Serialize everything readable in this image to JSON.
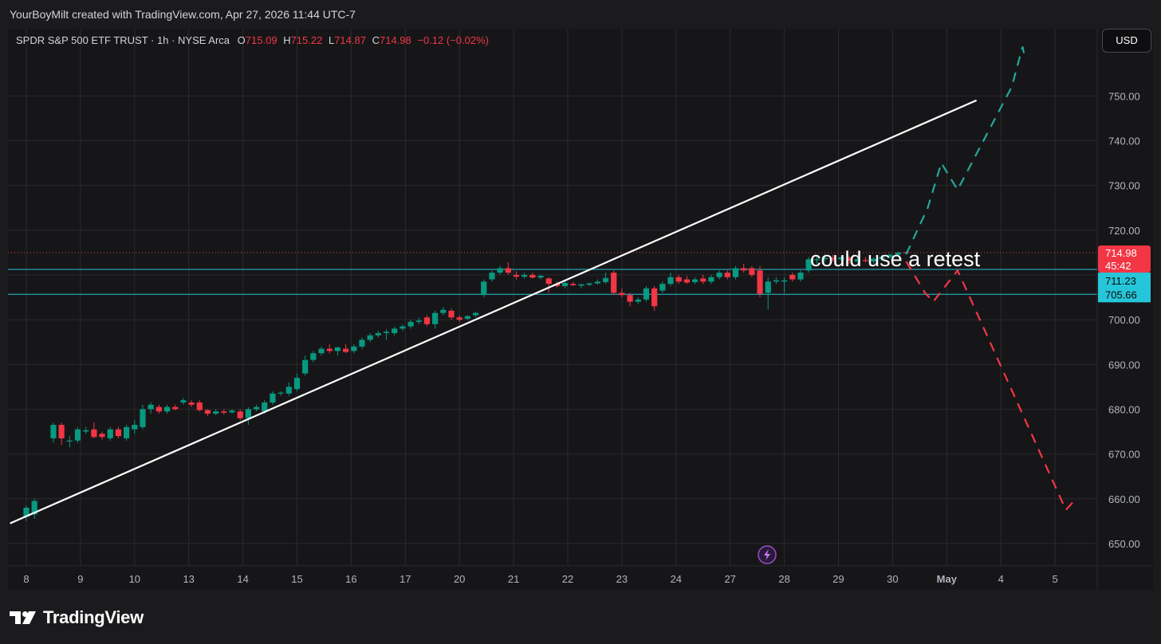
{
  "header": {
    "attribution": "YourBoyMilt created with TradingView.com, Apr 27, 2026 11:44 UTC-7"
  },
  "legend": {
    "symbol": "SPDR S&P 500 ETF TRUST · 1h · NYSE Arca",
    "o_label": "O",
    "o_value": "715.09",
    "h_label": "H",
    "h_value": "715.22",
    "l_label": "L",
    "l_value": "714.87",
    "c_label": "C",
    "c_value": "714.98",
    "change": "−0.12 (−0.02%)"
  },
  "currency_button": "USD",
  "annotation": "could use a retest",
  "price_tags": {
    "last_price": "714.98",
    "countdown": "45:42",
    "level_upper": "711.23",
    "level_lower": "705.66"
  },
  "footer": {
    "brand": "TradingView"
  },
  "colors": {
    "up": "#089981",
    "down": "#f23645",
    "level_line": "#26c6da",
    "trendline": "#ffffff",
    "bull_path": "#26a69a",
    "bear_path": "#f23645"
  },
  "chart_data": {
    "type": "candlestick",
    "title": "SPDR S&P 500 ETF TRUST · 1h · NYSE Arca",
    "x_ticks": [
      "8",
      "9",
      "10",
      "13",
      "14",
      "15",
      "16",
      "17",
      "20",
      "21",
      "22",
      "23",
      "24",
      "27",
      "28",
      "29",
      "30",
      "May",
      "4",
      "5"
    ],
    "y_ticks": [
      650,
      660,
      670,
      680,
      690,
      700,
      710,
      720,
      730,
      740,
      750
    ],
    "ylim": [
      645,
      765
    ],
    "last_price": 714.98,
    "horizontal_levels": [
      711.23,
      705.66
    ],
    "candles": [
      {
        "x": 0.0,
        "o": 656,
        "h": 658.5,
        "l": 655,
        "c": 658
      },
      {
        "x": 0.15,
        "o": 656.5,
        "h": 660,
        "l": 655.5,
        "c": 659.5
      },
      {
        "x": 0.5,
        "o": 673.5,
        "h": 677,
        "l": 672.5,
        "c": 676.5
      },
      {
        "x": 0.65,
        "o": 676.5,
        "h": 677,
        "l": 672,
        "c": 673.5
      },
      {
        "x": 0.8,
        "o": 673,
        "h": 674,
        "l": 671.5,
        "c": 673
      },
      {
        "x": 0.95,
        "o": 673,
        "h": 676,
        "l": 672.5,
        "c": 675.5
      },
      {
        "x": 1.1,
        "o": 675,
        "h": 676,
        "l": 674.5,
        "c": 675.3
      },
      {
        "x": 1.25,
        "o": 675.5,
        "h": 677,
        "l": 673.5,
        "c": 673.8
      },
      {
        "x": 1.4,
        "o": 674.5,
        "h": 675,
        "l": 673.2,
        "c": 673.8
      },
      {
        "x": 1.55,
        "o": 673.5,
        "h": 676,
        "l": 673,
        "c": 675.5
      },
      {
        "x": 1.7,
        "o": 675.5,
        "h": 676,
        "l": 673.5,
        "c": 674
      },
      {
        "x": 1.85,
        "o": 673.5,
        "h": 676.5,
        "l": 673,
        "c": 676
      },
      {
        "x": 2.0,
        "o": 675.5,
        "h": 677.5,
        "l": 674.5,
        "c": 676.5
      },
      {
        "x": 2.15,
        "o": 676,
        "h": 681,
        "l": 675.5,
        "c": 680
      },
      {
        "x": 2.3,
        "o": 680,
        "h": 681.5,
        "l": 679,
        "c": 681
      },
      {
        "x": 2.45,
        "o": 680.5,
        "h": 681,
        "l": 679,
        "c": 679.5
      },
      {
        "x": 2.6,
        "o": 679.5,
        "h": 681,
        "l": 679,
        "c": 680.5
      },
      {
        "x": 2.75,
        "o": 680.5,
        "h": 681,
        "l": 679.8,
        "c": 680
      },
      {
        "x": 2.9,
        "o": 681.5,
        "h": 682.5,
        "l": 681,
        "c": 682
      },
      {
        "x": 3.05,
        "o": 681.5,
        "h": 682,
        "l": 680.5,
        "c": 681
      },
      {
        "x": 3.2,
        "o": 681.5,
        "h": 682,
        "l": 679.5,
        "c": 679.8
      },
      {
        "x": 3.35,
        "o": 679.8,
        "h": 680,
        "l": 678.5,
        "c": 679
      },
      {
        "x": 3.5,
        "o": 679,
        "h": 680,
        "l": 678.7,
        "c": 679.5
      },
      {
        "x": 3.65,
        "o": 679.5,
        "h": 680,
        "l": 678.8,
        "c": 679.2
      },
      {
        "x": 3.8,
        "o": 679.3,
        "h": 680,
        "l": 679,
        "c": 679.7
      },
      {
        "x": 3.95,
        "o": 679.5,
        "h": 680,
        "l": 677.5,
        "c": 678
      },
      {
        "x": 4.1,
        "o": 678,
        "h": 680.5,
        "l": 676.5,
        "c": 680
      },
      {
        "x": 4.25,
        "o": 680,
        "h": 681,
        "l": 679.5,
        "c": 680.5
      },
      {
        "x": 4.4,
        "o": 679.5,
        "h": 682,
        "l": 679,
        "c": 681.5
      },
      {
        "x": 4.55,
        "o": 681.5,
        "h": 684,
        "l": 681,
        "c": 683.5
      },
      {
        "x": 4.7,
        "o": 683.5,
        "h": 684,
        "l": 683,
        "c": 683.7
      },
      {
        "x": 4.85,
        "o": 683.5,
        "h": 686,
        "l": 683,
        "c": 685
      },
      {
        "x": 5.0,
        "o": 684.5,
        "h": 688,
        "l": 684,
        "c": 687
      },
      {
        "x": 5.15,
        "o": 688,
        "h": 692,
        "l": 687.5,
        "c": 691
      },
      {
        "x": 5.3,
        "o": 691,
        "h": 693,
        "l": 690.5,
        "c": 692.5
      },
      {
        "x": 5.45,
        "o": 692.5,
        "h": 694,
        "l": 692,
        "c": 693.5
      },
      {
        "x": 5.6,
        "o": 693.5,
        "h": 694.5,
        "l": 692.5,
        "c": 693
      },
      {
        "x": 5.75,
        "o": 693,
        "h": 694,
        "l": 692,
        "c": 693.8
      },
      {
        "x": 5.9,
        "o": 693.5,
        "h": 694.5,
        "l": 692.5,
        "c": 692.8
      },
      {
        "x": 6.05,
        "o": 693,
        "h": 694.5,
        "l": 692.5,
        "c": 694
      },
      {
        "x": 6.2,
        "o": 694,
        "h": 696,
        "l": 693.5,
        "c": 695.5
      },
      {
        "x": 6.35,
        "o": 695.5,
        "h": 697,
        "l": 695,
        "c": 696.5
      },
      {
        "x": 6.5,
        "o": 696.5,
        "h": 697.5,
        "l": 696,
        "c": 697
      },
      {
        "x": 6.65,
        "o": 697,
        "h": 697.8,
        "l": 695.5,
        "c": 697.3
      },
      {
        "x": 6.8,
        "o": 697,
        "h": 698.5,
        "l": 696.5,
        "c": 698
      },
      {
        "x": 6.95,
        "o": 698,
        "h": 699,
        "l": 697.5,
        "c": 698.5
      },
      {
        "x": 7.1,
        "o": 698.5,
        "h": 700,
        "l": 698,
        "c": 699.5
      },
      {
        "x": 7.25,
        "o": 699.5,
        "h": 700.5,
        "l": 699,
        "c": 699.8
      },
      {
        "x": 7.4,
        "o": 700.5,
        "h": 701,
        "l": 698.5,
        "c": 699
      },
      {
        "x": 7.55,
        "o": 699,
        "h": 702,
        "l": 698,
        "c": 701.5
      },
      {
        "x": 7.7,
        "o": 701.5,
        "h": 702.8,
        "l": 701,
        "c": 702.2
      },
      {
        "x": 7.85,
        "o": 702,
        "h": 702.5,
        "l": 700,
        "c": 700.5
      },
      {
        "x": 8.0,
        "o": 700.5,
        "h": 701,
        "l": 699.5,
        "c": 700
      },
      {
        "x": 8.15,
        "o": 700.2,
        "h": 701,
        "l": 700,
        "c": 700.8
      },
      {
        "x": 8.3,
        "o": 701,
        "h": 701.8,
        "l": 700.6,
        "c": 701.5
      },
      {
        "x": 8.45,
        "o": 705.5,
        "h": 709,
        "l": 705,
        "c": 708.5
      },
      {
        "x": 8.6,
        "o": 709,
        "h": 711,
        "l": 708.5,
        "c": 710.5
      },
      {
        "x": 8.75,
        "o": 710.5,
        "h": 712,
        "l": 710,
        "c": 711.5
      },
      {
        "x": 8.9,
        "o": 711.5,
        "h": 712.8,
        "l": 710,
        "c": 710.5
      },
      {
        "x": 9.05,
        "o": 710,
        "h": 710.8,
        "l": 709,
        "c": 709.6
      },
      {
        "x": 9.2,
        "o": 709.6,
        "h": 710.5,
        "l": 709.2,
        "c": 710
      },
      {
        "x": 9.35,
        "o": 710,
        "h": 710.5,
        "l": 709.2,
        "c": 709.4
      },
      {
        "x": 9.5,
        "o": 709.4,
        "h": 710,
        "l": 709,
        "c": 709.8
      },
      {
        "x": 9.65,
        "o": 709.2,
        "h": 709.5,
        "l": 706,
        "c": 708
      },
      {
        "x": 9.8,
        "o": 708,
        "h": 708.5,
        "l": 707.2,
        "c": 707.5
      },
      {
        "x": 9.95,
        "o": 707.5,
        "h": 708.6,
        "l": 707,
        "c": 708.2
      },
      {
        "x": 10.1,
        "o": 708,
        "h": 708.5,
        "l": 707.5,
        "c": 707.7
      },
      {
        "x": 10.25,
        "o": 707.6,
        "h": 708,
        "l": 707,
        "c": 707.9
      },
      {
        "x": 10.4,
        "o": 707.8,
        "h": 708.3,
        "l": 707.5,
        "c": 708.1
      },
      {
        "x": 10.55,
        "o": 708.1,
        "h": 709,
        "l": 707.8,
        "c": 708.5
      },
      {
        "x": 10.7,
        "o": 708.4,
        "h": 710.5,
        "l": 708,
        "c": 709.3
      },
      {
        "x": 10.85,
        "o": 710.5,
        "h": 711,
        "l": 705.5,
        "c": 706
      },
      {
        "x": 11.0,
        "o": 706,
        "h": 707,
        "l": 705,
        "c": 705.5
      },
      {
        "x": 11.15,
        "o": 705.5,
        "h": 706,
        "l": 703,
        "c": 704
      },
      {
        "x": 11.3,
        "o": 704,
        "h": 705,
        "l": 703.5,
        "c": 704.5
      },
      {
        "x": 11.45,
        "o": 704.5,
        "h": 707.5,
        "l": 704,
        "c": 707
      },
      {
        "x": 11.6,
        "o": 707,
        "h": 707.5,
        "l": 702,
        "c": 703
      },
      {
        "x": 11.75,
        "o": 706.5,
        "h": 708.5,
        "l": 706,
        "c": 708
      },
      {
        "x": 11.9,
        "o": 708,
        "h": 710.5,
        "l": 707.5,
        "c": 709.5
      },
      {
        "x": 12.05,
        "o": 709.5,
        "h": 710,
        "l": 708,
        "c": 708.5
      },
      {
        "x": 12.2,
        "o": 709,
        "h": 709.8,
        "l": 708,
        "c": 708.3
      },
      {
        "x": 12.35,
        "o": 708.4,
        "h": 709.5,
        "l": 708,
        "c": 709
      },
      {
        "x": 12.5,
        "o": 709.2,
        "h": 710,
        "l": 708,
        "c": 708.5
      },
      {
        "x": 12.65,
        "o": 708.5,
        "h": 710,
        "l": 708,
        "c": 709.5
      },
      {
        "x": 12.8,
        "o": 709.5,
        "h": 711,
        "l": 709,
        "c": 710.5
      },
      {
        "x": 12.95,
        "o": 710.5,
        "h": 711,
        "l": 709,
        "c": 709.5
      },
      {
        "x": 13.1,
        "o": 709.5,
        "h": 712,
        "l": 709,
        "c": 711.5
      },
      {
        "x": 13.25,
        "o": 711.5,
        "h": 712.5,
        "l": 710.5,
        "c": 711
      },
      {
        "x": 13.4,
        "o": 711.5,
        "h": 712,
        "l": 709.5,
        "c": 710
      },
      {
        "x": 13.55,
        "o": 711,
        "h": 712,
        "l": 705,
        "c": 705.8
      },
      {
        "x": 13.7,
        "o": 706,
        "h": 709.5,
        "l": 702.3,
        "c": 708.5
      },
      {
        "x": 13.85,
        "o": 708.5,
        "h": 709.5,
        "l": 708,
        "c": 708.8
      },
      {
        "x": 14.0,
        "o": 708.5,
        "h": 709.5,
        "l": 706,
        "c": 708.8
      },
      {
        "x": 14.15,
        "o": 710,
        "h": 710.5,
        "l": 708.5,
        "c": 709
      },
      {
        "x": 14.3,
        "o": 709,
        "h": 711,
        "l": 708.5,
        "c": 710.5
      },
      {
        "x": 14.45,
        "o": 711,
        "h": 714,
        "l": 710.5,
        "c": 713.5
      },
      {
        "x": 14.6,
        "o": 713.5,
        "h": 714.2,
        "l": 712.5,
        "c": 713.5
      },
      {
        "x": 14.75,
        "o": 713.5,
        "h": 714.5,
        "l": 713,
        "c": 713.8
      },
      {
        "x": 14.9,
        "o": 713.8,
        "h": 714.5,
        "l": 713,
        "c": 713.5
      },
      {
        "x": 15.05,
        "o": 713.5,
        "h": 714.2,
        "l": 713,
        "c": 713.9
      },
      {
        "x": 15.2,
        "o": 713.8,
        "h": 714.3,
        "l": 712.5,
        "c": 713.2
      },
      {
        "x": 15.35,
        "o": 713,
        "h": 714.5,
        "l": 712.8,
        "c": 713.5
      },
      {
        "x": 15.5,
        "o": 713.3,
        "h": 714,
        "l": 712.8,
        "c": 713.1
      },
      {
        "x": 15.65,
        "o": 713,
        "h": 714,
        "l": 712.5,
        "c": 713.6
      },
      {
        "x": 15.8,
        "o": 713.6,
        "h": 714.4,
        "l": 713.2,
        "c": 714
      },
      {
        "x": 15.95,
        "o": 714,
        "h": 714.8,
        "l": 713.6,
        "c": 714.5
      },
      {
        "x": 16.1,
        "o": 714.5,
        "h": 715.2,
        "l": 714.3,
        "c": 715
      },
      {
        "x": 16.25,
        "o": 715.09,
        "h": 715.22,
        "l": 714.87,
        "c": 714.98
      }
    ],
    "trendline": {
      "x1": -0.3,
      "y1": 654.5,
      "x2": 17.55,
      "y2": 749
    },
    "bull_path": [
      [
        16.25,
        714.6
      ],
      [
        16.65,
        725
      ],
      [
        16.9,
        735
      ],
      [
        17.2,
        729
      ],
      [
        18.2,
        752
      ],
      [
        18.4,
        761
      ],
      [
        18.45,
        758
      ]
    ],
    "bear_path": [
      [
        16.25,
        713
      ],
      [
        16.6,
        706
      ],
      [
        16.75,
        704
      ],
      [
        17.2,
        711
      ],
      [
        17.35,
        707
      ],
      [
        19.2,
        657.5
      ],
      [
        19.35,
        659.5
      ]
    ]
  }
}
